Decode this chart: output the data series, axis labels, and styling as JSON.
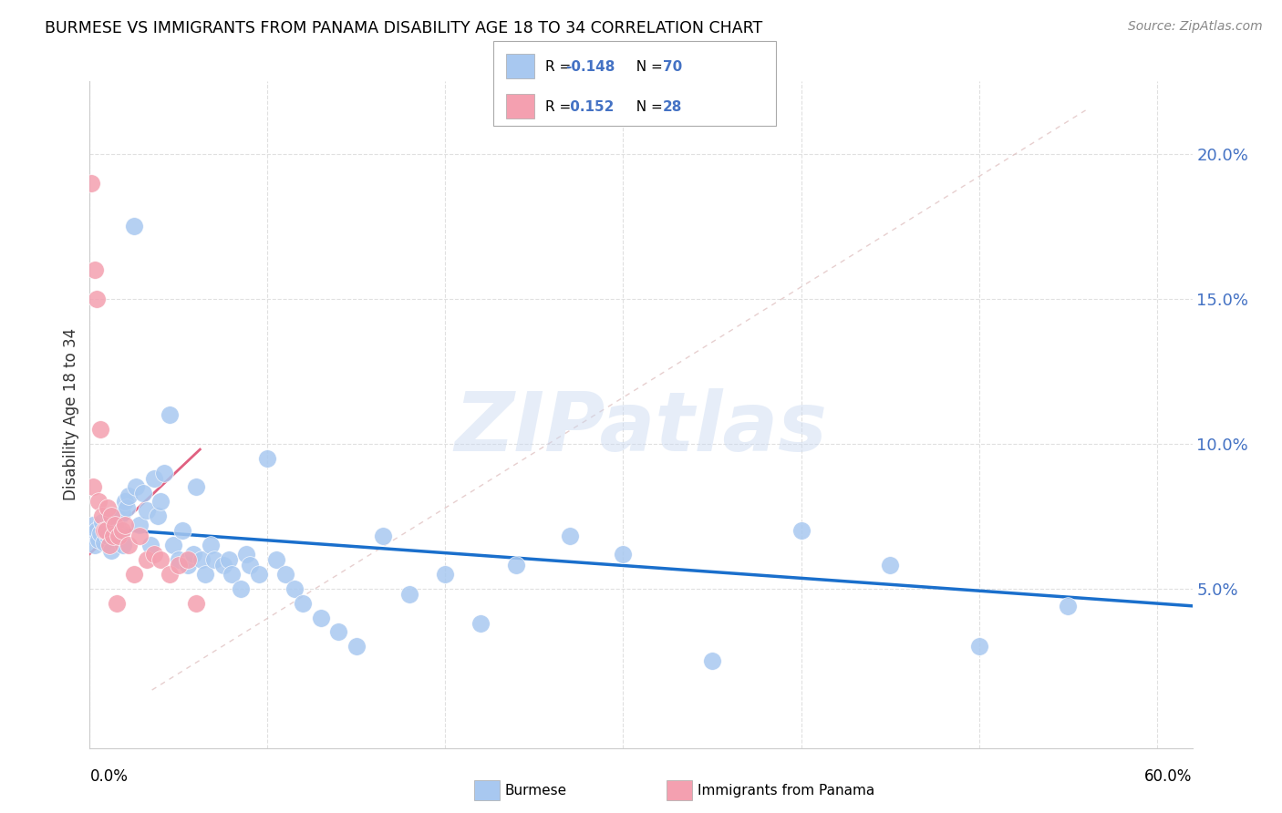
{
  "title": "BURMESE VS IMMIGRANTS FROM PANAMA DISABILITY AGE 18 TO 34 CORRELATION CHART",
  "source": "Source: ZipAtlas.com",
  "ylabel": "Disability Age 18 to 34",
  "yticks": [
    0.05,
    0.1,
    0.15,
    0.2
  ],
  "ytick_labels": [
    "5.0%",
    "10.0%",
    "15.0%",
    "20.0%"
  ],
  "xlim": [
    0.0,
    0.62
  ],
  "ylim": [
    -0.005,
    0.225
  ],
  "watermark": "ZIPatlas",
  "legend_blue_r": "R = -0.148",
  "legend_blue_n": "N = 70",
  "legend_pink_r": "R =  0.152",
  "legend_pink_n": "N = 28",
  "blue_color": "#a8c8f0",
  "pink_color": "#f4a0b0",
  "blue_line_color": "#1a6fcc",
  "pink_line_color": "#e06080",
  "ref_line_color": "#cccccc",
  "blue_scatter_x": [
    0.001,
    0.002,
    0.003,
    0.004,
    0.005,
    0.006,
    0.007,
    0.008,
    0.009,
    0.01,
    0.011,
    0.012,
    0.013,
    0.014,
    0.015,
    0.016,
    0.017,
    0.018,
    0.019,
    0.02,
    0.021,
    0.022,
    0.025,
    0.026,
    0.028,
    0.03,
    0.032,
    0.034,
    0.036,
    0.038,
    0.04,
    0.042,
    0.045,
    0.047,
    0.05,
    0.052,
    0.055,
    0.058,
    0.06,
    0.063,
    0.065,
    0.068,
    0.07,
    0.075,
    0.078,
    0.08,
    0.085,
    0.088,
    0.09,
    0.095,
    0.1,
    0.105,
    0.11,
    0.115,
    0.12,
    0.13,
    0.14,
    0.15,
    0.165,
    0.18,
    0.2,
    0.22,
    0.24,
    0.27,
    0.3,
    0.35,
    0.4,
    0.45,
    0.5,
    0.55
  ],
  "blue_scatter_y": [
    0.068,
    0.072,
    0.065,
    0.07,
    0.067,
    0.069,
    0.073,
    0.066,
    0.071,
    0.068,
    0.075,
    0.063,
    0.072,
    0.07,
    0.068,
    0.074,
    0.069,
    0.076,
    0.065,
    0.08,
    0.078,
    0.082,
    0.175,
    0.085,
    0.072,
    0.083,
    0.077,
    0.065,
    0.088,
    0.075,
    0.08,
    0.09,
    0.11,
    0.065,
    0.06,
    0.07,
    0.058,
    0.062,
    0.085,
    0.06,
    0.055,
    0.065,
    0.06,
    0.058,
    0.06,
    0.055,
    0.05,
    0.062,
    0.058,
    0.055,
    0.095,
    0.06,
    0.055,
    0.05,
    0.045,
    0.04,
    0.035,
    0.03,
    0.068,
    0.048,
    0.055,
    0.038,
    0.058,
    0.068,
    0.062,
    0.025,
    0.07,
    0.058,
    0.03,
    0.044
  ],
  "pink_scatter_x": [
    0.001,
    0.002,
    0.003,
    0.004,
    0.005,
    0.006,
    0.007,
    0.008,
    0.009,
    0.01,
    0.011,
    0.012,
    0.013,
    0.014,
    0.015,
    0.016,
    0.018,
    0.02,
    0.022,
    0.025,
    0.028,
    0.032,
    0.036,
    0.04,
    0.045,
    0.05,
    0.055,
    0.06
  ],
  "pink_scatter_y": [
    0.19,
    0.085,
    0.16,
    0.15,
    0.08,
    0.105,
    0.075,
    0.07,
    0.07,
    0.078,
    0.065,
    0.075,
    0.068,
    0.072,
    0.045,
    0.068,
    0.07,
    0.072,
    0.065,
    0.055,
    0.068,
    0.06,
    0.062,
    0.06,
    0.055,
    0.058,
    0.06,
    0.045
  ],
  "blue_trend_x": [
    0.0,
    0.62
  ],
  "blue_trend_y": [
    0.071,
    0.044
  ],
  "pink_trend_x": [
    0.0,
    0.062
  ],
  "pink_trend_y": [
    0.062,
    0.098
  ],
  "ref_line_x": [
    0.035,
    0.56
  ],
  "ref_line_y": [
    0.015,
    0.215
  ]
}
